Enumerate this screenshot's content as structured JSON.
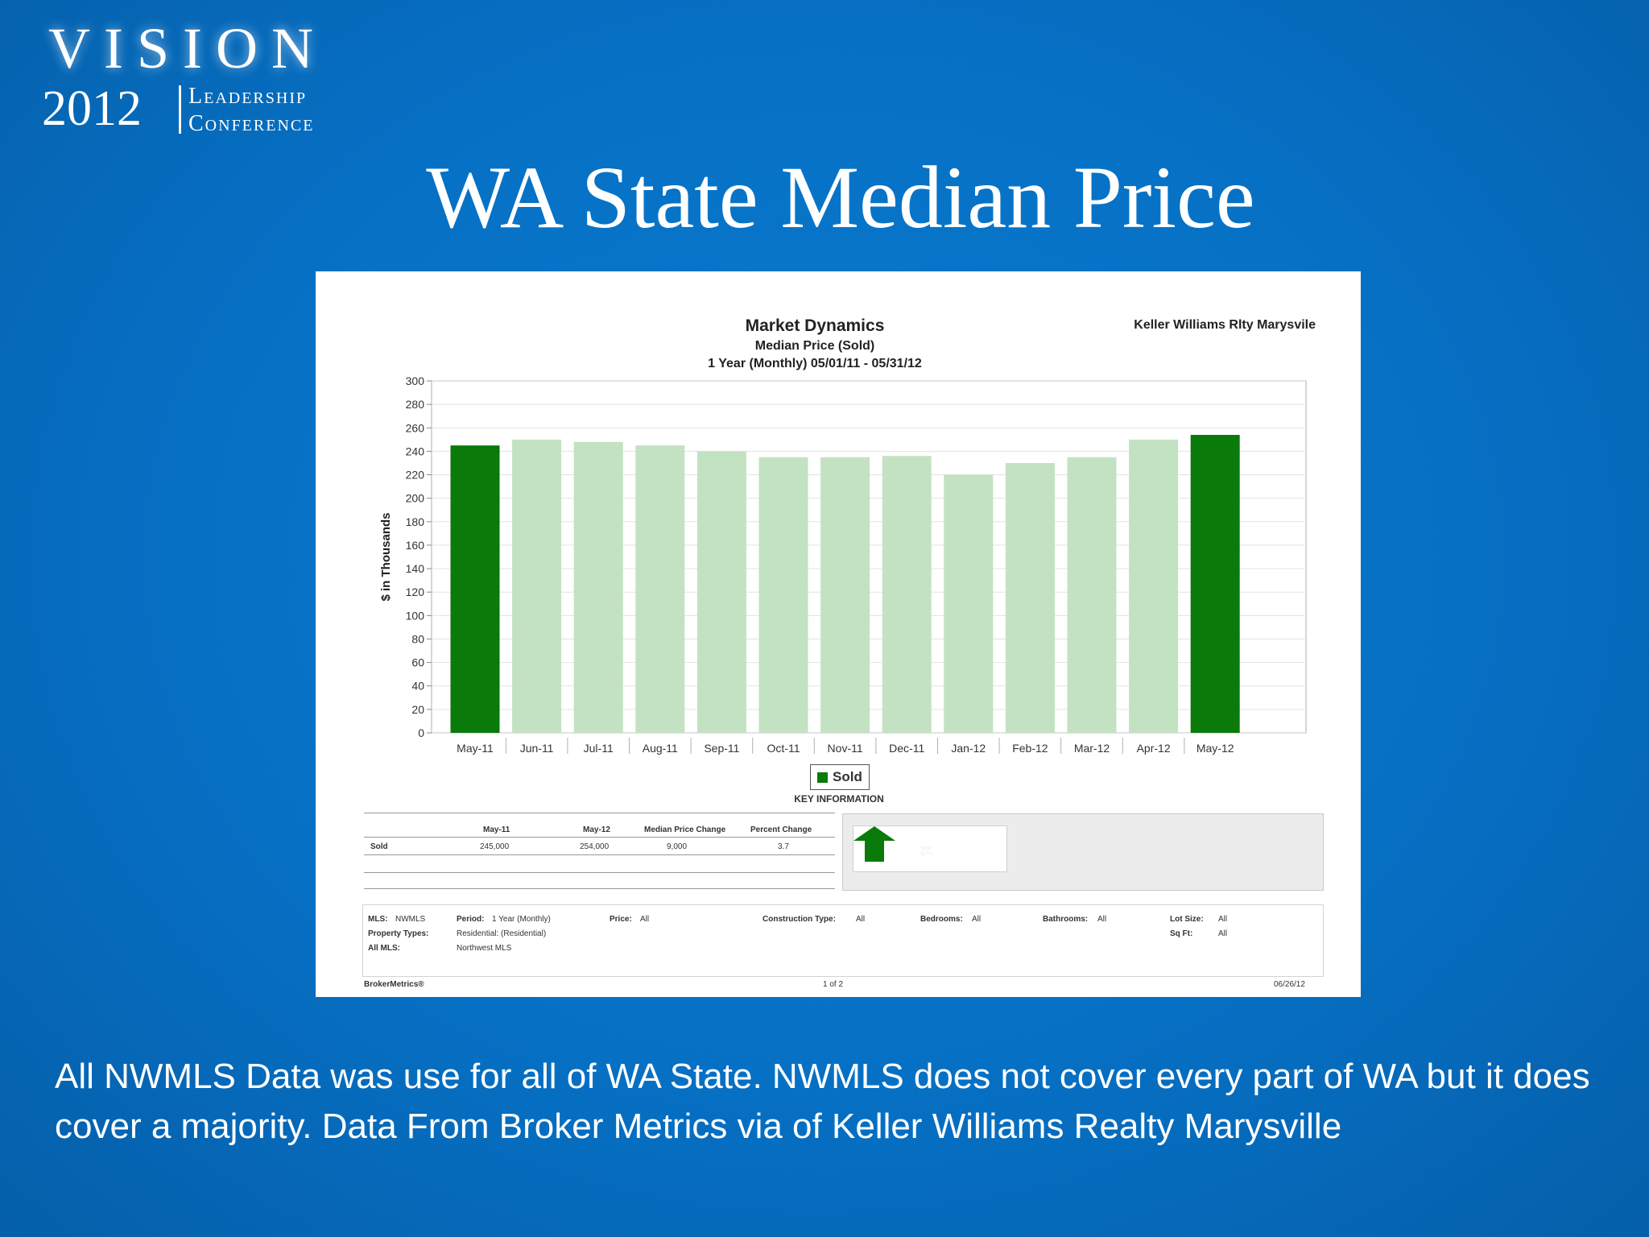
{
  "logo": {
    "word": "VISION",
    "year": "2012",
    "line1": "Leadership",
    "line2": "Conference"
  },
  "slide_title": "WA State Median Price",
  "report": {
    "title": "Market Dynamics",
    "subtitle1": "Median Price (Sold)",
    "subtitle2": "1 Year (Monthly) 05/01/11 - 05/31/12",
    "company": "Keller Williams Rlty Marysvile",
    "legend_label": "Sold",
    "key_information": "KEY INFORMATION",
    "key_table": {
      "headers": [
        "May-11",
        "May-12",
        "Median Price Change",
        "Percent Change"
      ],
      "row_label": "Sold",
      "values": [
        "245,000",
        "254,000",
        "9,000",
        "3.7"
      ]
    },
    "arrow_text_1": "Sold",
    "arrow_text_2": "+3.7%",
    "info": {
      "mls_label": "MLS:",
      "mls_value": "NWMLS",
      "property_types_label": "Property Types:",
      "property_types_value": "Residential: (Residential)",
      "all_mls_label": "All MLS:",
      "period_label": "Period:",
      "period_value": "1 Year (Monthly)",
      "northwest_mls": "Northwest MLS",
      "price_label": "Price:",
      "price_value": "All",
      "construction_label": "Construction Type:",
      "construction_value": "All",
      "bedrooms_label": "Bedrooms:",
      "bedrooms_value": "All",
      "bathrooms_label": "Bathrooms:",
      "bathrooms_value": "All",
      "lot_size_label": "Lot Size:",
      "lot_size_value": "All",
      "sqft_label": "Sq Ft:",
      "sqft_value": "All"
    },
    "footer_brand": "BrokerMetrics®",
    "footer_page": "1 of 2",
    "footer_date": "06/26/12"
  },
  "colors": {
    "background": "#0670c4",
    "bar_highlight": "#0a7a0a",
    "bar_default": "#c3e2c2"
  },
  "chart_data": {
    "type": "bar",
    "title": "Market Dynamics",
    "subtitle": "Median Price (Sold)",
    "ylabel": "$ in Thousands",
    "xlabel": "",
    "ylim": [
      0,
      300
    ],
    "yticks": [
      0,
      20,
      40,
      60,
      80,
      100,
      120,
      140,
      160,
      180,
      200,
      220,
      240,
      260,
      280,
      300
    ],
    "grid": true,
    "legend": "bottom-center",
    "categories": [
      "May-11",
      "Jun-11",
      "Jul-11",
      "Aug-11",
      "Sep-11",
      "Oct-11",
      "Nov-11",
      "Dec-11",
      "Jan-12",
      "Feb-12",
      "Mar-12",
      "Apr-12",
      "May-12"
    ],
    "series": [
      {
        "name": "Sold",
        "values": [
          245,
          250,
          248,
          245,
          240,
          235,
          235,
          236,
          220,
          230,
          235,
          250,
          254
        ],
        "highlighted_categories": [
          "May-11",
          "May-12"
        ]
      }
    ]
  },
  "caption": "All NWMLS Data was use for all of WA State.  NWMLS does not cover every part of WA but it does cover a majority. Data From Broker Metrics via of Keller Williams Realty Marysville"
}
